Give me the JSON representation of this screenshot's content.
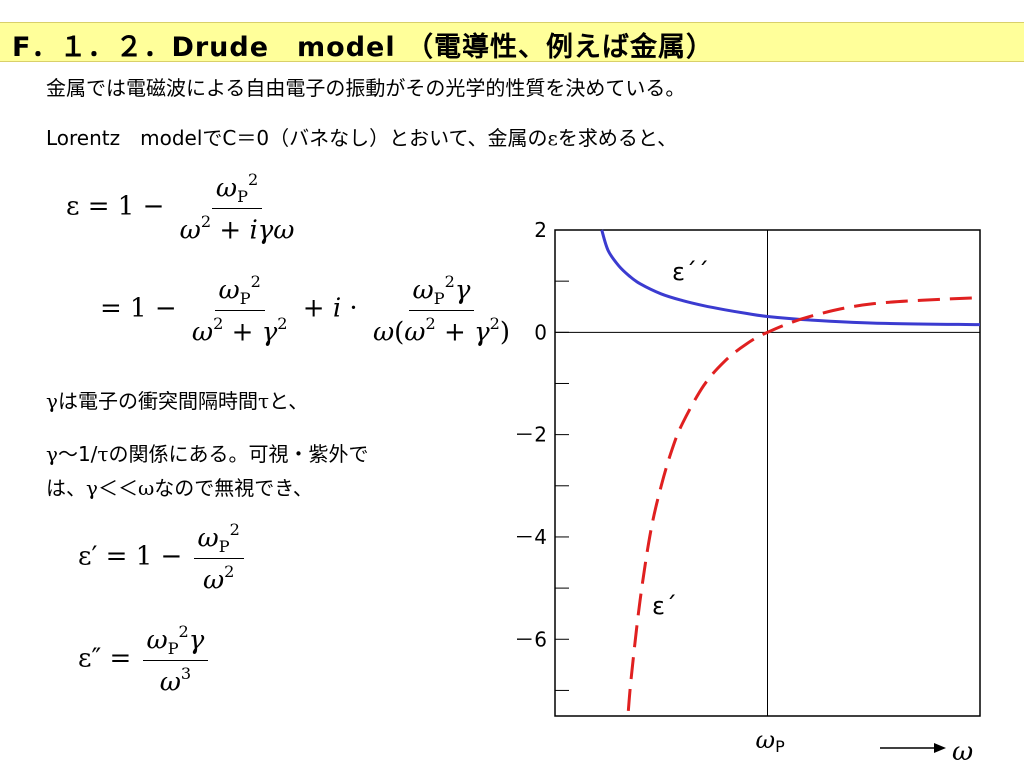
{
  "title": "F．１．２．Drude　model （電導性、例えば金属）",
  "intro_line_1": "金属では電磁波による自由電子の振動がその光学的性質を決めている。",
  "intro_line_2_a": "Lorentz　modelでC＝0（バネなし）とおいて、金属の",
  "intro_line_2_sym": "ε",
  "intro_line_2_b": "を求めると、",
  "note_1_sym": "γ",
  "note_1_a": "は電子の衝突間隔時間",
  "note_1_sym2": "τ",
  "note_1_b": "と、",
  "note_2_sym": "γ",
  "note_2_a": "～1/",
  "note_2_sym2": "τ",
  "note_2_b": "の関係にある。可視・紫外で",
  "note_3_a": "は、",
  "note_3_sym": "γ",
  "note_3_b": "＜＜",
  "note_3_sym2": "ω",
  "note_3_c": "なので無視でき、",
  "equations": {
    "eq1_lhs": "ε = 1 −",
    "eq1_num": "ωP²",
    "eq1_den": "ω² + iγω",
    "eq2_lhs": "= 1 −",
    "eq2_num1": "ωP²",
    "eq2_den1": "ω² + γ²",
    "eq2_mid": "+ i ·",
    "eq2_num2": "ωP²γ",
    "eq2_den2": "ω(ω² + γ²)",
    "eq3_lhs": "ε′ = 1 −",
    "eq3_num": "ωP²",
    "eq3_den": "ω²",
    "eq4_lhs": "ε″ =",
    "eq4_num": "ωP²γ",
    "eq4_den": "ω³"
  },
  "chart_data": {
    "type": "line",
    "ylim": [
      -7.5,
      2
    ],
    "y_ticks": [
      2,
      0,
      -2,
      -4,
      -6
    ],
    "y_tick_labels": [
      "2",
      "0",
      "－2",
      "－4",
      "－6"
    ],
    "x_marker_label": "ωP",
    "x_axis_label": "ω",
    "grid": false,
    "series": [
      {
        "name": "ε´´",
        "style": "solid",
        "color": "#3b3bd0",
        "x": [
          0.22,
          0.25,
          0.3,
          0.35,
          0.4,
          0.5,
          0.6,
          0.7,
          0.8,
          0.9,
          1.0,
          1.2,
          1.5,
          2.0
        ],
        "values": [
          2.0,
          1.6,
          1.3,
          1.1,
          0.95,
          0.75,
          0.62,
          0.52,
          0.44,
          0.37,
          0.31,
          0.24,
          0.18,
          0.15
        ]
      },
      {
        "name": "ε´",
        "style": "dashed",
        "color": "#e02020",
        "x": [
          0.345,
          0.36,
          0.4,
          0.45,
          0.5,
          0.55,
          0.6,
          0.7,
          0.8,
          0.9,
          1.0,
          1.2,
          1.5,
          2.0
        ],
        "values": [
          -7.4,
          -6.7,
          -5.25,
          -3.9,
          -3.0,
          -2.3,
          -1.78,
          -1.04,
          -0.56,
          -0.23,
          0.0,
          0.31,
          0.56,
          0.68
        ]
      }
    ],
    "x_marker": 1.0,
    "xlim": [
      0.0,
      2.0
    ]
  }
}
